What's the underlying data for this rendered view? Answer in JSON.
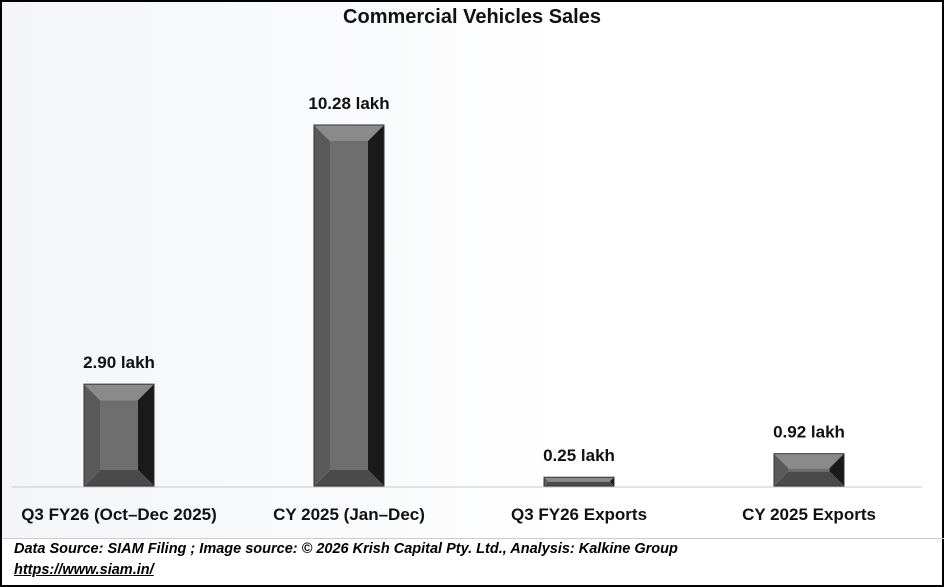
{
  "chart_data": {
    "type": "bar",
    "title": "Commercial Vehicles Sales",
    "categories": [
      "Q3 FY26 (Oct–Dec 2025)",
      "CY 2025 (Jan–Dec)",
      "Q3 FY26 Exports",
      "CY 2025 Exports"
    ],
    "values": [
      2.9,
      10.28,
      0.25,
      0.92
    ],
    "data_labels": [
      "2.90 lakh",
      "10.28 lakh",
      "0.25 lakh",
      "0.92 lakh"
    ],
    "unit": "lakh",
    "xlabel": "",
    "ylabel": "",
    "ylim": [
      0,
      12.7
    ],
    "grid": false,
    "bar_color": "#6e6e6e"
  },
  "footer": {
    "source": "Data Source: SIAM Filing ; Image source: © 2026 Krish Capital Pty. Ltd., Analysis: Kalkine Group",
    "link": "https://www.siam.in/"
  }
}
